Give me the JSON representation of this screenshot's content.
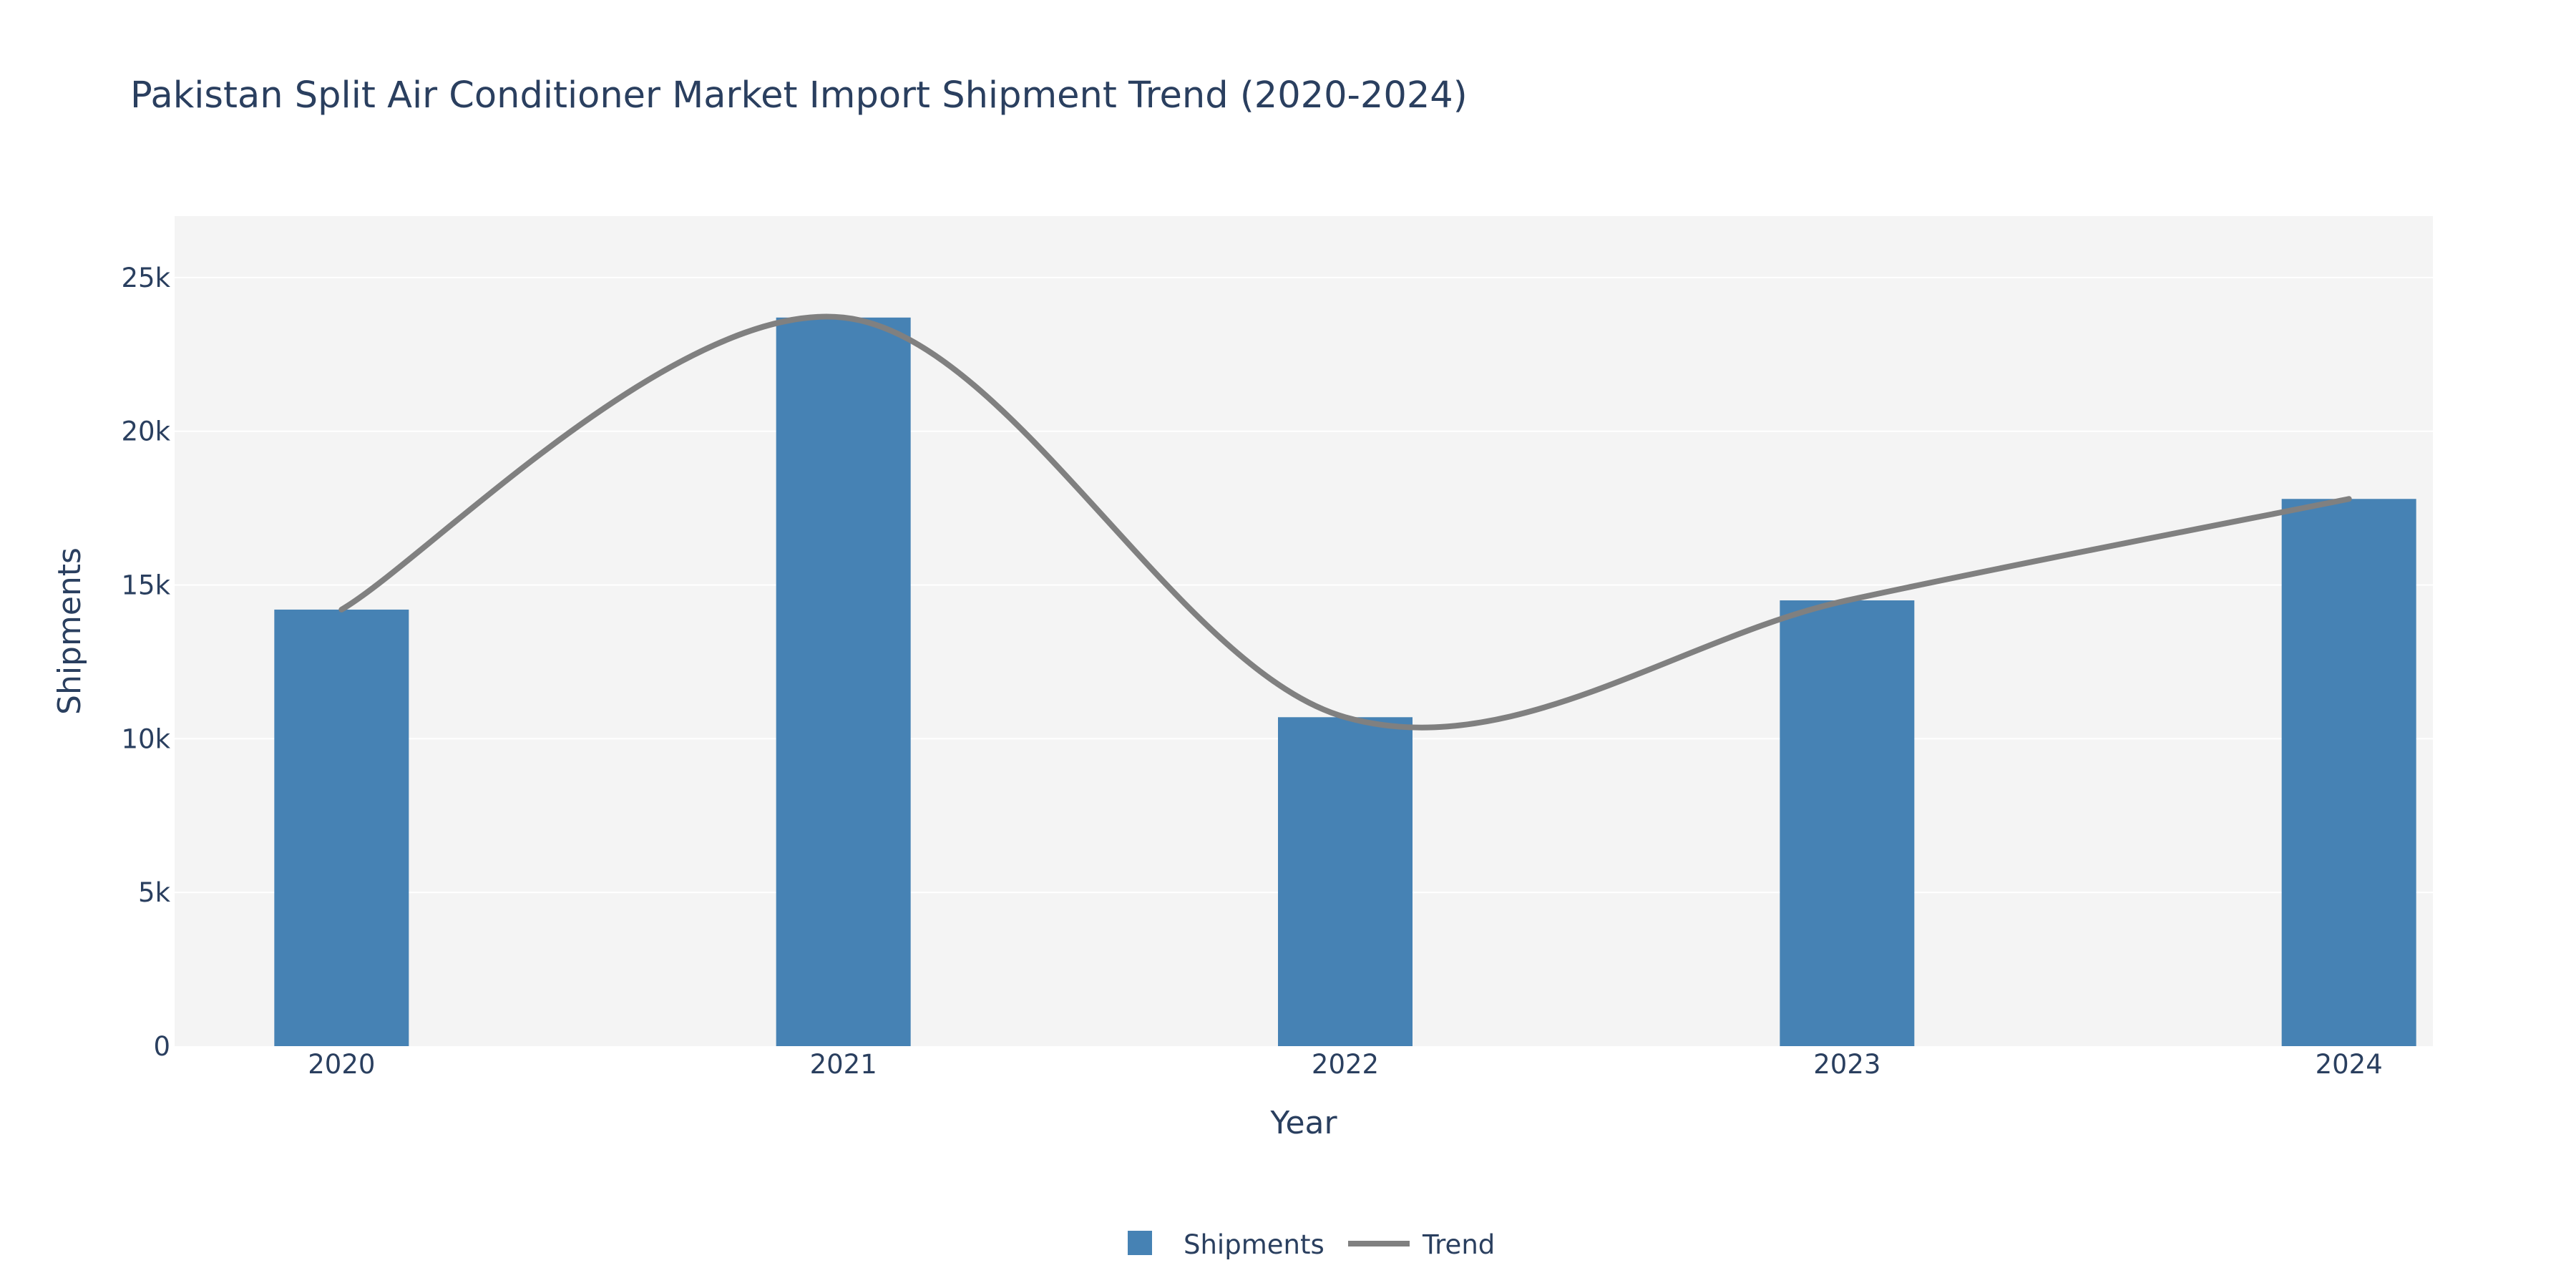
{
  "chart_data": {
    "type": "bar",
    "title": "Pakistan Split Air Conditioner Market Import Shipment Trend (2020-2024)",
    "xlabel": "Year",
    "ylabel": "Shipments",
    "categories": [
      "2020",
      "2021",
      "2022",
      "2023",
      "2024"
    ],
    "series": [
      {
        "name": "Shipments",
        "type": "bar",
        "color": "#4682b4",
        "values": [
          14200,
          23700,
          10700,
          14500,
          17800
        ]
      },
      {
        "name": "Trend",
        "type": "line",
        "shape": "spline",
        "color": "#808080",
        "values": [
          14200,
          23700,
          10700,
          14500,
          17800
        ]
      }
    ],
    "ylim": [
      0,
      27000
    ],
    "yticks": [
      0,
      5000,
      10000,
      15000,
      20000,
      25000
    ],
    "ytick_labels": [
      "0",
      "5k",
      "10k",
      "15k",
      "20k",
      "25k"
    ],
    "grid": true,
    "plot_bg": "#f4f4f4",
    "legend": {
      "position": "bottom-center",
      "orientation": "horizontal"
    }
  }
}
